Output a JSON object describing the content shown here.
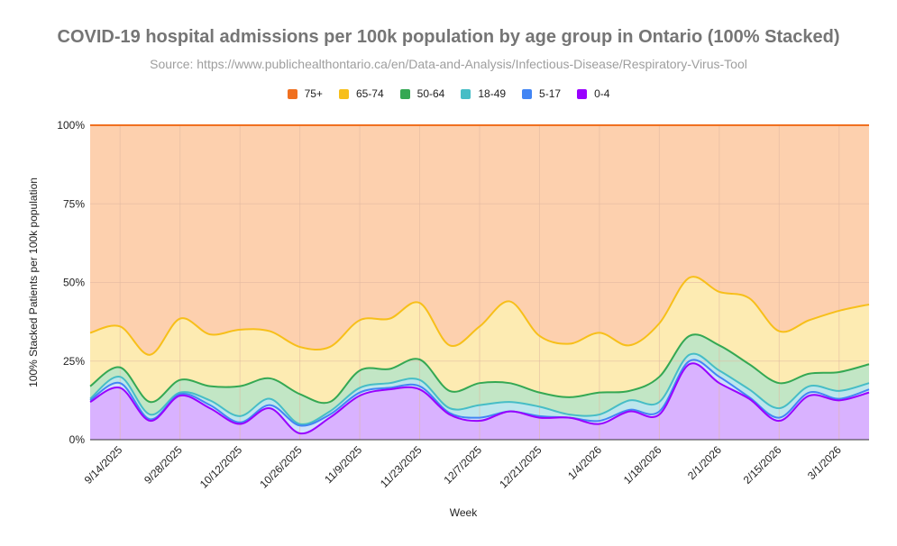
{
  "chart_data": {
    "type": "area",
    "stacking": "percent",
    "title": "COVID-19 hospital admissions per 100k population by age group in Ontario (100% Stacked)",
    "subtitle": "Source: https://www.publichealthontario.ca/en/Data-and-Analysis/Infectious-Disease/Respiratory-Virus-Tool",
    "xlabel": "Week",
    "ylabel": "100% Stacked Patients per 100k population",
    "ylim": [
      0,
      100
    ],
    "y_ticks": [
      "0%",
      "25%",
      "50%",
      "75%",
      "100%"
    ],
    "x_ticks": [
      "9/14/2025",
      "9/28/2025",
      "10/12/2025",
      "10/26/2025",
      "11/9/2025",
      "11/23/2025",
      "12/7/2025",
      "12/21/2025",
      "1/4/2026",
      "1/18/2026",
      "2/1/2026",
      "2/15/2026",
      "3/1/2026"
    ],
    "legend_position": "top",
    "grid": true,
    "x": [
      "9/7/2025",
      "9/14/2025",
      "9/21/2025",
      "9/28/2025",
      "10/5/2025",
      "10/12/2025",
      "10/19/2025",
      "10/26/2025",
      "11/2/2025",
      "11/9/2025",
      "11/16/2025",
      "11/23/2025",
      "11/30/2025",
      "12/7/2025",
      "12/14/2025",
      "12/21/2025",
      "12/28/2025",
      "1/4/2026",
      "1/11/2026",
      "1/18/2026",
      "1/25/2026",
      "2/1/2026",
      "2/8/2026",
      "2/15/2026",
      "2/22/2026",
      "3/1/2026",
      "3/8/2026"
    ],
    "cumulative_top": {
      "0-4": [
        12,
        16.5,
        6,
        14,
        10,
        5,
        10,
        2,
        7,
        14,
        16,
        16,
        8,
        6,
        9,
        7,
        7,
        5,
        9,
        8,
        24,
        18,
        13,
        6,
        14,
        12.5,
        15
      ],
      "5-17": [
        12.5,
        18,
        6.5,
        14.5,
        11,
        5.5,
        11,
        4.5,
        8,
        15,
        16.5,
        17,
        8.5,
        7,
        9,
        7.5,
        7,
        6,
        9.5,
        9,
        25,
        20,
        13.5,
        7,
        15,
        13,
        16
      ],
      "18-49": [
        13,
        20,
        8,
        15,
        12.5,
        7.5,
        13,
        5,
        9,
        16.5,
        18,
        19,
        10,
        11,
        12,
        10.5,
        8,
        8,
        12.5,
        12,
        27,
        22,
        16,
        10,
        17,
        15.5,
        18
      ],
      "50-64": [
        17,
        23,
        12,
        19,
        17,
        17,
        19.5,
        14.5,
        12,
        22,
        22.5,
        25.5,
        15.5,
        18,
        18,
        15,
        13.5,
        15,
        15.5,
        20,
        33,
        30,
        24,
        18,
        21,
        21.5,
        24
      ],
      "65-74": [
        34,
        36,
        27,
        38.5,
        33.5,
        35,
        34.5,
        29.5,
        29.5,
        38,
        38.5,
        43.5,
        30,
        36,
        44,
        33,
        30.5,
        34,
        30,
        37,
        51.5,
        47,
        45,
        34.5,
        38,
        41,
        43
      ],
      "75+": [
        100,
        100,
        100,
        100,
        100,
        100,
        100,
        100,
        100,
        100,
        100,
        100,
        100,
        100,
        100,
        100,
        100,
        100,
        100,
        100,
        100,
        100,
        100,
        100,
        100,
        100,
        100
      ]
    },
    "series": [
      {
        "name": "75+",
        "line": "#f07020",
        "fill": "#fdd0ae"
      },
      {
        "name": "65-74",
        "line": "#f7bf1a",
        "fill": "#fdebb2"
      },
      {
        "name": "50-64",
        "line": "#34a853",
        "fill": "#c2e6c5"
      },
      {
        "name": "18-49",
        "line": "#46bdc6",
        "fill": "#bde6ec"
      },
      {
        "name": "5-17",
        "line": "#4285f4",
        "fill": "#cfe0fc"
      },
      {
        "name": "0-4",
        "line": "#9900ff",
        "fill": "#d9b2ff"
      }
    ]
  }
}
